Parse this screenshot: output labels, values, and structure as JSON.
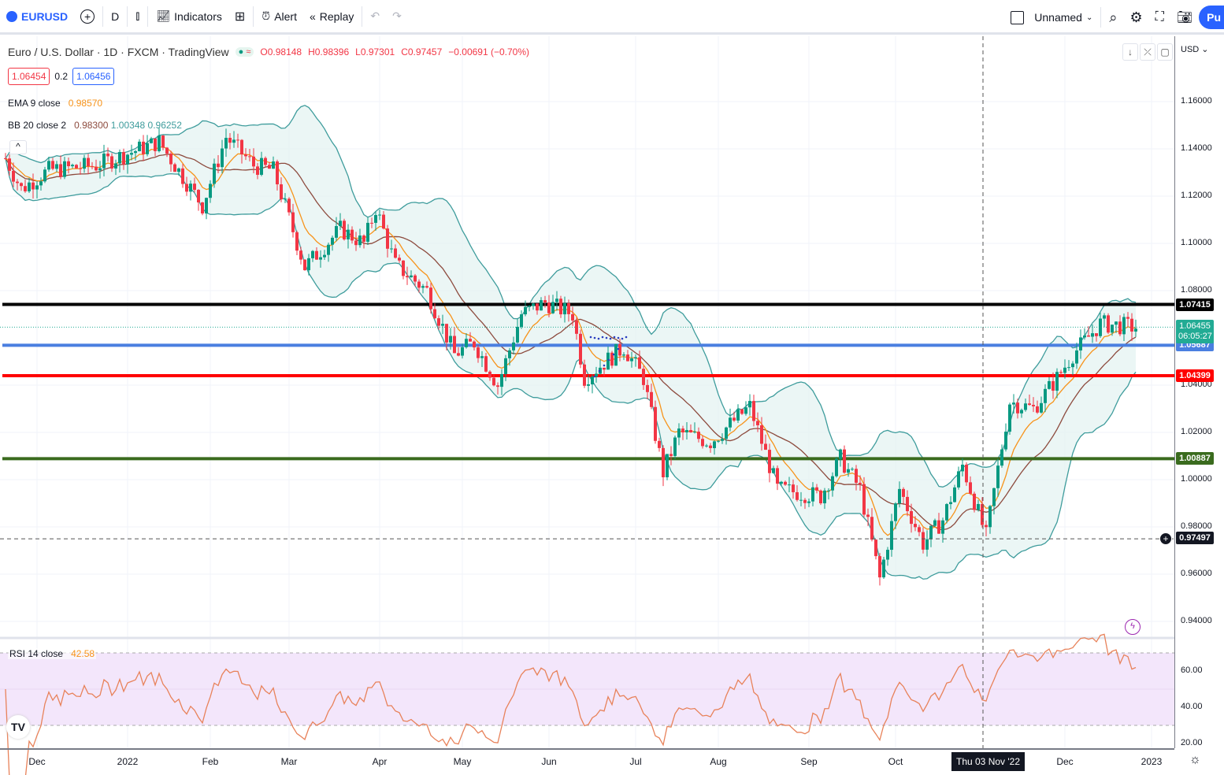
{
  "toolbar": {
    "symbol": "EURUSD",
    "interval": "D",
    "indicators_label": "Indicators",
    "alert_label": "Alert",
    "replay_label": "Replay",
    "layout_name": "Unnamed",
    "publish_label": "Pu"
  },
  "legend": {
    "title": "Euro / U.S. Dollar · 1D · FXCM · TradingView",
    "open": "O0.98148",
    "high": "H0.98396",
    "low": "L0.97301",
    "close": "C0.97457",
    "change": "−0.00691 (−0.70%)",
    "sell_price": "1.06454",
    "spread": "0.2",
    "buy_price": "1.06456",
    "ema_label": "EMA 9 close",
    "ema_value": "0.98570",
    "bb_label": "BB 20 close 2",
    "bb_basis": "0.98300",
    "bb_upper": "1.00348",
    "bb_lower": "0.96252",
    "rsi_label": "RSI 14 close",
    "rsi_value": "42.58"
  },
  "price_axis": {
    "currency": "USD",
    "ticks": [
      "1.16000",
      "1.14000",
      "1.12000",
      "1.10000",
      "1.08000",
      "1.04000",
      "1.02000",
      "1.00000",
      "0.98000",
      "0.96000",
      "0.94000"
    ],
    "tick_values": [
      1.16,
      1.14,
      1.12,
      1.1,
      1.08,
      1.04,
      1.02,
      1.0,
      0.98,
      0.96,
      0.94
    ],
    "rsi_ticks": [
      "60.00",
      "40.00",
      "20.00"
    ],
    "rsi_tick_values": [
      60,
      40,
      20
    ]
  },
  "levels": [
    {
      "label": "1.07415",
      "value": 1.07415,
      "color": "#000000"
    },
    {
      "label": "1.05687",
      "value": 1.05687,
      "color": "#4a7fe0"
    },
    {
      "label": "1.04399",
      "value": 1.04399,
      "color": "#ff0000"
    },
    {
      "label": "1.00887",
      "value": 1.00887,
      "color": "#3a6b1e"
    }
  ],
  "last_price": {
    "label": "1.06455",
    "value": 1.06455,
    "countdown": "06:05:27",
    "color": "#22ab94"
  },
  "crosshair": {
    "price_label": "0.97497",
    "price": 0.97497,
    "date_label": "Thu 03 Nov '22"
  },
  "time_axis": {
    "labels": [
      "Dec",
      "2022",
      "Feb",
      "Mar",
      "Apr",
      "May",
      "Jun",
      "Jul",
      "Aug",
      "Sep",
      "Oct",
      "Dec",
      "2023"
    ],
    "label_bars": [
      8,
      31,
      52,
      72,
      95,
      116,
      138,
      160,
      181,
      204,
      226,
      269,
      291
    ]
  },
  "colors": {
    "up": "#089981",
    "down": "#f23645",
    "ema": "#f7931a",
    "basis": "#8d4b3e",
    "bands": "#3e9c9c",
    "band_fill": "#e3f2f1",
    "rsi": "#e8825a",
    "rsi_band": "#f3e6fb"
  },
  "chart_data": {
    "type": "candlestick",
    "title": "Euro / U.S. Dollar · 1D · FXCM",
    "bars": 288,
    "ylim": [
      0.925,
      1.172
    ],
    "price_path": [
      [
        0,
        1.136
      ],
      [
        4,
        1.123
      ],
      [
        11,
        1.131
      ],
      [
        23,
        1.133
      ],
      [
        39,
        1.143
      ],
      [
        50,
        1.116
      ],
      [
        56,
        1.145
      ],
      [
        63,
        1.133
      ],
      [
        68,
        1.131
      ],
      [
        76,
        1.09
      ],
      [
        85,
        1.106
      ],
      [
        91,
        1.1
      ],
      [
        94,
        1.115
      ],
      [
        99,
        1.091
      ],
      [
        107,
        1.08
      ],
      [
        114,
        1.053
      ],
      [
        119,
        1.058
      ],
      [
        125,
        1.04
      ],
      [
        131,
        1.07
      ],
      [
        137,
        1.075
      ],
      [
        144,
        1.07
      ],
      [
        147,
        1.043
      ],
      [
        157,
        1.056
      ],
      [
        162,
        1.043
      ],
      [
        167,
        1.003
      ],
      [
        171,
        1.02
      ],
      [
        179,
        1.016
      ],
      [
        189,
        1.031
      ],
      [
        196,
        0.996
      ],
      [
        207,
        0.993
      ],
      [
        212,
        1.009
      ],
      [
        217,
        0.996
      ],
      [
        222,
        0.958
      ],
      [
        227,
        0.996
      ],
      [
        233,
        0.973
      ],
      [
        238,
        0.983
      ],
      [
        243,
        1.006
      ],
      [
        249,
        0.976
      ],
      [
        255,
        1.033
      ],
      [
        261,
        1.03
      ],
      [
        267,
        1.043
      ],
      [
        271,
        1.053
      ],
      [
        278,
        1.066
      ],
      [
        287,
        1.0645
      ]
    ]
  }
}
